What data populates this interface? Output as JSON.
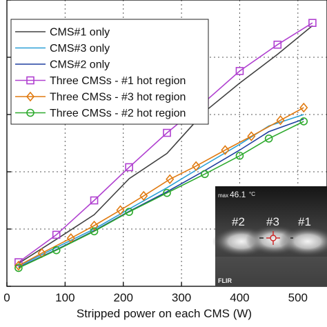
{
  "chart_data": {
    "type": "line",
    "title": "",
    "xlabel": "Stripped power on each CMS (W)",
    "ylabel": "",
    "xlim": [
      0,
      550
    ],
    "ylim": [
      0,
      500
    ],
    "xticks": [
      0,
      100,
      200,
      300,
      400,
      500
    ],
    "yticks": [
      0,
      100,
      200,
      300,
      400,
      500
    ],
    "grid": true,
    "legend_placement": "top-left",
    "series": [
      {
        "name": "CMS#1 only",
        "color": "#404040",
        "marker": "none",
        "x": [
          20,
          85,
          150,
          210,
          275,
          340,
          400,
          465,
          525
        ],
        "y": [
          40,
          82,
          125,
          188,
          232,
          305,
          355,
          405,
          455
        ]
      },
      {
        "name": "CMS#3 only",
        "color": "#2a9fd6",
        "marker": "none",
        "x": [
          20,
          85,
          150,
          210,
          275,
          340,
          400,
          450,
          510
        ],
        "y": [
          35,
          68,
          100,
          135,
          172,
          212,
          248,
          280,
          300
        ]
      },
      {
        "name": "CMS#2 only",
        "color": "#1f3f9f",
        "marker": "none",
        "x": [
          20,
          85,
          150,
          210,
          275,
          340,
          400,
          450,
          510
        ],
        "y": [
          33,
          64,
          97,
          131,
          165,
          202,
          238,
          270,
          292
        ]
      },
      {
        "name": "Three CMSs - #1 hot region",
        "color": "#b040d0",
        "marker": "square",
        "x": [
          20,
          85,
          150,
          210,
          275,
          340,
          400,
          465,
          525
        ],
        "y": [
          42,
          90,
          150,
          208,
          268,
          322,
          376,
          422,
          460
        ]
      },
      {
        "name": "Three CMSs - #3 hot region",
        "color": "#e07a10",
        "marker": "diamond",
        "x": [
          20,
          60,
          110,
          150,
          195,
          235,
          280,
          325,
          375,
          420,
          470,
          510
        ],
        "y": [
          36,
          58,
          84,
          106,
          133,
          158,
          187,
          210,
          238,
          262,
          290,
          312
        ]
      },
      {
        "name": "Three CMSs - #2 hot region",
        "color": "#2eaa2e",
        "marker": "circle",
        "x": [
          20,
          85,
          150,
          210,
          275,
          340,
          400,
          450,
          510
        ],
        "y": [
          32,
          63,
          96,
          130,
          163,
          196,
          228,
          258,
          288
        ]
      }
    ]
  },
  "inset": {
    "readout": "46.1",
    "readout_prefix": "max",
    "readout_unit": "°C",
    "labels": [
      "#2",
      "#3",
      "#1"
    ],
    "brand": "FLIR"
  },
  "colors": {
    "axis": "#111111",
    "grid": "#555555",
    "inset_bg": "#1e1e1e"
  }
}
